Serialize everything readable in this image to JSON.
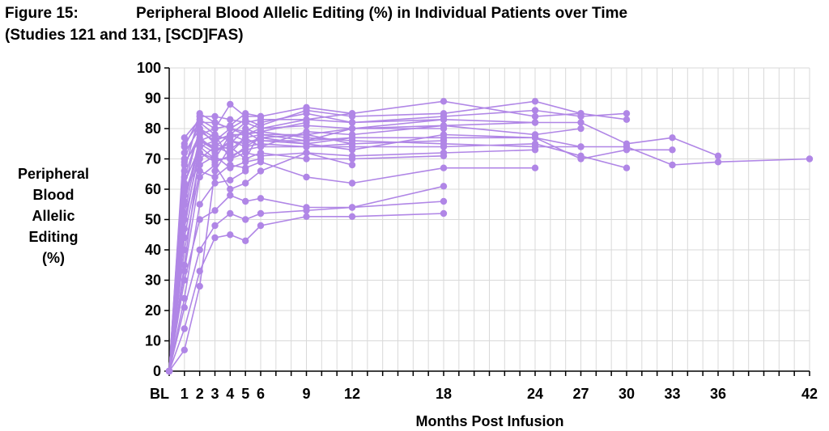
{
  "figure": {
    "label": "Figure 15:",
    "title": "Peripheral Blood Allelic Editing (%) in Individual Patients over Time",
    "subtitle": "(Studies 121 and 131, [SCD]FAS)"
  },
  "colors": {
    "series": "#b086e6",
    "axis": "#000000",
    "grid": "#d9d9d9"
  },
  "chart_data": {
    "type": "line",
    "title": "Peripheral Blood Allelic Editing (%) in Individual Patients over Time",
    "subtitle": "(Studies 121 and 131, [SCD]FAS)",
    "xlabel": "Months Post Infusion",
    "ylabel_lines": [
      "Peripheral",
      "Blood",
      "Allelic",
      "Editing",
      "(%)"
    ],
    "x_ticks": [
      "BL",
      "1",
      "2",
      "3",
      "4",
      "5",
      "6",
      "9",
      "12",
      "18",
      "24",
      "27",
      "30",
      "33",
      "36",
      "42"
    ],
    "x_tick_values": [
      0,
      1,
      2,
      3,
      4,
      5,
      6,
      9,
      12,
      18,
      24,
      27,
      30,
      33,
      36,
      42
    ],
    "xlim": [
      0,
      42
    ],
    "ylim": [
      0,
      100
    ],
    "y_ticks": [
      0,
      10,
      20,
      30,
      40,
      50,
      60,
      70,
      80,
      90,
      100
    ],
    "grid": true,
    "legend": "none",
    "series": [
      {
        "x": [
          0,
          1,
          2,
          3,
          4,
          5,
          6,
          9,
          12,
          18,
          24,
          27,
          30,
          33,
          36,
          42
        ],
        "y": [
          0,
          62,
          74,
          76,
          78,
          78,
          79,
          77,
          76,
          75,
          74,
          74,
          74,
          68,
          69,
          70
        ]
      },
      {
        "x": [
          0,
          1,
          2,
          3,
          4,
          5,
          6,
          9,
          12,
          18,
          24,
          27,
          30,
          33,
          36
        ],
        "y": [
          0,
          70,
          82,
          78,
          76,
          75,
          77,
          78,
          80,
          81,
          82,
          82,
          75,
          77,
          71
        ]
      },
      {
        "x": [
          0,
          1,
          2,
          3,
          4,
          5,
          6,
          9,
          12,
          18,
          24,
          27,
          30,
          33
        ],
        "y": [
          0,
          55,
          77,
          73,
          75,
          80,
          78,
          76,
          77,
          77,
          77,
          70,
          73,
          73
        ]
      },
      {
        "x": [
          0,
          1,
          2,
          3,
          4,
          5,
          6,
          9,
          12,
          18,
          24,
          27,
          30
        ],
        "y": [
          0,
          35,
          72,
          70,
          78,
          82,
          80,
          83,
          82,
          84,
          86,
          84,
          85
        ]
      },
      {
        "x": [
          0,
          1,
          2,
          3,
          4,
          5,
          6,
          9,
          12,
          18,
          24,
          27,
          30
        ],
        "y": [
          0,
          66,
          85,
          82,
          80,
          83,
          81,
          86,
          84,
          85,
          89,
          85,
          83
        ]
      },
      {
        "x": [
          0,
          1,
          2,
          3,
          4,
          5,
          6,
          9,
          12,
          18,
          24,
          27,
          30
        ],
        "y": [
          0,
          47,
          75,
          72,
          76,
          74,
          75,
          74,
          74,
          74,
          75,
          71,
          67
        ]
      },
      {
        "x": [
          0,
          1,
          2,
          3,
          4,
          5,
          6,
          9,
          12,
          18,
          24,
          27
        ],
        "y": [
          0,
          68,
          78,
          80,
          88,
          84,
          84,
          87,
          85,
          89,
          84,
          85
        ]
      },
      {
        "x": [
          0,
          1,
          2,
          3,
          4,
          5,
          6,
          9,
          12,
          18,
          24,
          27
        ],
        "y": [
          0,
          61,
          80,
          75,
          73,
          77,
          74,
          79,
          78,
          81,
          78,
          80
        ]
      },
      {
        "x": [
          0,
          1,
          2,
          3,
          4,
          5,
          6,
          9,
          12,
          18,
          24,
          27
        ],
        "y": [
          0,
          52,
          76,
          74,
          78,
          76,
          76,
          75,
          73,
          78,
          77,
          74
        ]
      },
      {
        "x": [
          0,
          1,
          2,
          3,
          4,
          5,
          6,
          9,
          12,
          18,
          24
        ],
        "y": [
          0,
          72,
          80,
          77,
          77,
          79,
          76,
          76,
          80,
          83,
          82
        ]
      },
      {
        "x": [
          0,
          1,
          2,
          3,
          4,
          5,
          6,
          9,
          12,
          18,
          24
        ],
        "y": [
          0,
          58,
          74,
          70,
          70,
          72,
          71,
          72,
          71,
          72,
          73
        ]
      },
      {
        "x": [
          0,
          1,
          2,
          3,
          4,
          5,
          6,
          9,
          12,
          18,
          24
        ],
        "y": [
          0,
          40,
          66,
          64,
          68,
          67,
          69,
          64,
          62,
          67,
          67
        ]
      },
      {
        "x": [
          0,
          1,
          2,
          3,
          4,
          5,
          6,
          9,
          12,
          18
        ],
        "y": [
          0,
          75,
          82,
          82,
          80,
          79,
          82,
          85,
          82,
          83
        ]
      },
      {
        "x": [
          0,
          1,
          2,
          3,
          4,
          5,
          6,
          9,
          12,
          18
        ],
        "y": [
          0,
          64,
          79,
          76,
          80,
          78,
          80,
          81,
          80,
          80
        ]
      },
      {
        "x": [
          0,
          1,
          2,
          3,
          4,
          5,
          6,
          9,
          12,
          18
        ],
        "y": [
          0,
          50,
          72,
          69,
          71,
          73,
          74,
          74,
          75,
          76
        ]
      },
      {
        "x": [
          0,
          1,
          2,
          3,
          4,
          5,
          6,
          9,
          12,
          18
        ],
        "y": [
          0,
          69,
          76,
          73,
          74,
          70,
          72,
          70,
          70,
          71
        ]
      },
      {
        "x": [
          0,
          1,
          2,
          3,
          4,
          5,
          6,
          9,
          12,
          18
        ],
        "y": [
          0,
          30,
          50,
          53,
          58,
          56,
          57,
          54,
          54,
          61
        ]
      },
      {
        "x": [
          0,
          1,
          2,
          3,
          4,
          5,
          6,
          9,
          12,
          18
        ],
        "y": [
          0,
          21,
          40,
          48,
          52,
          50,
          52,
          53,
          54,
          56
        ]
      },
      {
        "x": [
          0,
          1,
          2,
          3,
          4,
          5,
          6,
          9,
          12,
          18
        ],
        "y": [
          0,
          14,
          33,
          44,
          45,
          43,
          48,
          51,
          51,
          52
        ]
      },
      {
        "x": [
          0,
          1,
          2,
          3,
          4,
          5,
          6,
          9,
          12
        ],
        "y": [
          0,
          74,
          84,
          84,
          83,
          82,
          83,
          83,
          85
        ]
      },
      {
        "x": [
          0,
          1,
          2,
          3,
          4,
          5,
          6,
          9,
          12
        ],
        "y": [
          0,
          56,
          76,
          78,
          70,
          74,
          77,
          75,
          77
        ]
      },
      {
        "x": [
          0,
          1,
          2,
          3,
          4,
          5,
          6,
          9,
          12
        ],
        "y": [
          0,
          44,
          70,
          74,
          72,
          77,
          78,
          78,
          75
        ]
      },
      {
        "x": [
          0,
          1,
          2,
          3,
          4,
          5,
          6,
          9,
          12
        ],
        "y": [
          0,
          33,
          64,
          68,
          60,
          62,
          66,
          72,
          68
        ]
      },
      {
        "x": [
          0,
          1,
          2,
          3,
          4,
          5,
          6,
          9
        ],
        "y": [
          0,
          7,
          28,
          66,
          74,
          70,
          79,
          82
        ]
      },
      {
        "x": [
          0,
          1,
          2,
          3,
          4,
          5,
          6
        ],
        "y": [
          0,
          77,
          83,
          80,
          81,
          85,
          84
        ]
      },
      {
        "x": [
          0,
          1,
          2,
          3,
          4,
          5,
          6
        ],
        "y": [
          0,
          60,
          68,
          71,
          67,
          69,
          70
        ]
      },
      {
        "x": [
          0,
          1,
          2,
          3,
          4,
          5
        ],
        "y": [
          0,
          24,
          55,
          62,
          63,
          66
        ]
      }
    ]
  }
}
